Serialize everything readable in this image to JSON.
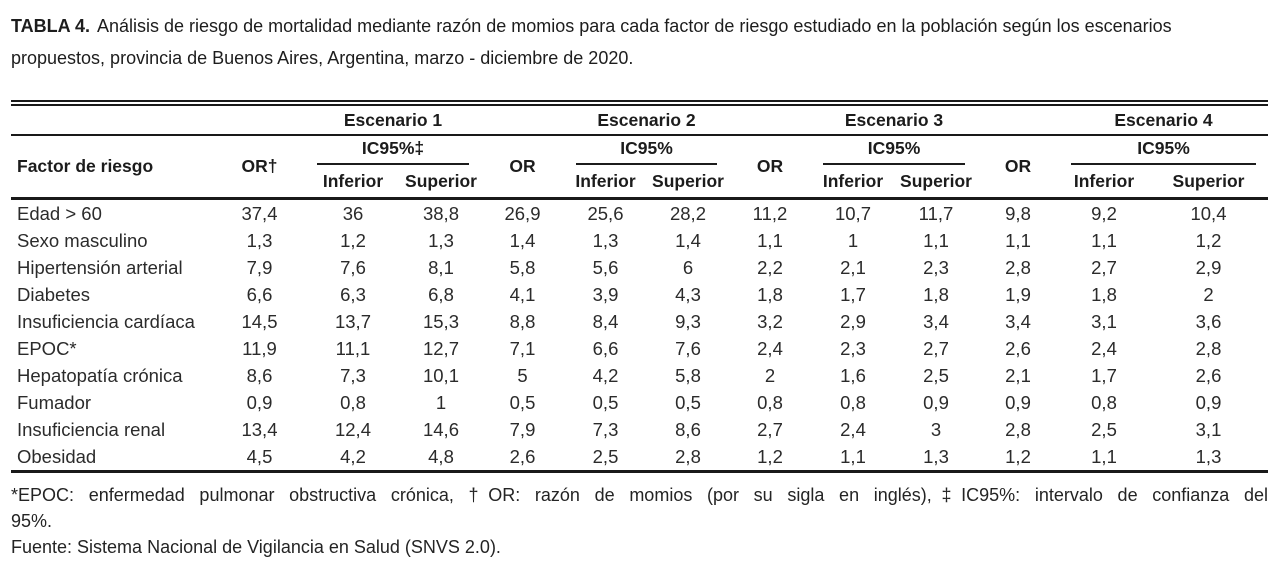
{
  "title": {
    "label": "TABLA 4.",
    "text": "Análisis de riesgo de mortalidad mediante razón de momios para cada factor de riesgo estudiado en la población según los escenarios propuestos, provincia de Buenos Aires, Argentina, marzo - diciembre de 2020."
  },
  "table": {
    "factor_header": "Factor de riesgo",
    "scenarios": [
      {
        "name": "Escenario 1",
        "or_label": "OR†",
        "ci_label": "IC95%‡",
        "inferior_label": "Inferior",
        "superior_label": "Superior"
      },
      {
        "name": "Escenario 2",
        "or_label": "OR",
        "ci_label": "IC95%",
        "inferior_label": "Inferior",
        "superior_label": "Superior"
      },
      {
        "name": "Escenario 3",
        "or_label": "OR",
        "ci_label": "IC95%",
        "inferior_label": "Inferior",
        "superior_label": "Superior"
      },
      {
        "name": "Escenario 4",
        "or_label": "OR",
        "ci_label": "IC95%",
        "inferior_label": "Inferior",
        "superior_label": "Superior"
      }
    ],
    "rows": [
      {
        "factor": "Edad > 60",
        "values": [
          "37,4",
          "36",
          "38,8",
          "26,9",
          "25,6",
          "28,2",
          "11,2",
          "10,7",
          "11,7",
          "9,8",
          "9,2",
          "10,4"
        ]
      },
      {
        "factor": "Sexo masculino",
        "values": [
          "1,3",
          "1,2",
          "1,3",
          "1,4",
          "1,3",
          "1,4",
          "1,1",
          "1",
          "1,1",
          "1,1",
          "1,1",
          "1,2"
        ]
      },
      {
        "factor": "Hipertensión arterial",
        "values": [
          "7,9",
          "7,6",
          "8,1",
          "5,8",
          "5,6",
          "6",
          "2,2",
          "2,1",
          "2,3",
          "2,8",
          "2,7",
          "2,9"
        ]
      },
      {
        "factor": "Diabetes",
        "values": [
          "6,6",
          "6,3",
          "6,8",
          "4,1",
          "3,9",
          "4,3",
          "1,8",
          "1,7",
          "1,8",
          "1,9",
          "1,8",
          "2"
        ]
      },
      {
        "factor": "Insuficiencia cardíaca",
        "values": [
          "14,5",
          "13,7",
          "15,3",
          "8,8",
          "8,4",
          "9,3",
          "3,2",
          "2,9",
          "3,4",
          "3,4",
          "3,1",
          "3,6"
        ]
      },
      {
        "factor": "EPOC*",
        "values": [
          "11,9",
          "11,1",
          "12,7",
          "7,1",
          "6,6",
          "7,6",
          "2,4",
          "2,3",
          "2,7",
          "2,6",
          "2,4",
          "2,8"
        ]
      },
      {
        "factor": "Hepatopatía crónica",
        "values": [
          "8,6",
          "7,3",
          "10,1",
          "5",
          "4,2",
          "5,8",
          "2",
          "1,6",
          "2,5",
          "2,1",
          "1,7",
          "2,6"
        ]
      },
      {
        "factor": "Fumador",
        "values": [
          "0,9",
          "0,8",
          "1",
          "0,5",
          "0,5",
          "0,5",
          "0,8",
          "0,8",
          "0,9",
          "0,9",
          "0,8",
          "0,9"
        ]
      },
      {
        "factor": "Insuficiencia renal",
        "values": [
          "13,4",
          "12,4",
          "14,6",
          "7,9",
          "7,3",
          "8,6",
          "2,7",
          "2,4",
          "3",
          "2,8",
          "2,5",
          "3,1"
        ]
      },
      {
        "factor": "Obesidad",
        "values": [
          "4,5",
          "4,2",
          "4,8",
          "2,6",
          "2,5",
          "2,8",
          "1,2",
          "1,1",
          "1,3",
          "1,2",
          "1,1",
          "1,3"
        ]
      }
    ]
  },
  "footnotes": {
    "line1": "*EPOC: enfermedad pulmonar obstructiva crónica, †OR: razón de momios (por su sigla en inglés),‡IC95%: intervalo de confianza del",
    "line2": "95%.",
    "source": "Fuente: Sistema Nacional de Vigilancia en Salud (SNVS 2.0)."
  }
}
